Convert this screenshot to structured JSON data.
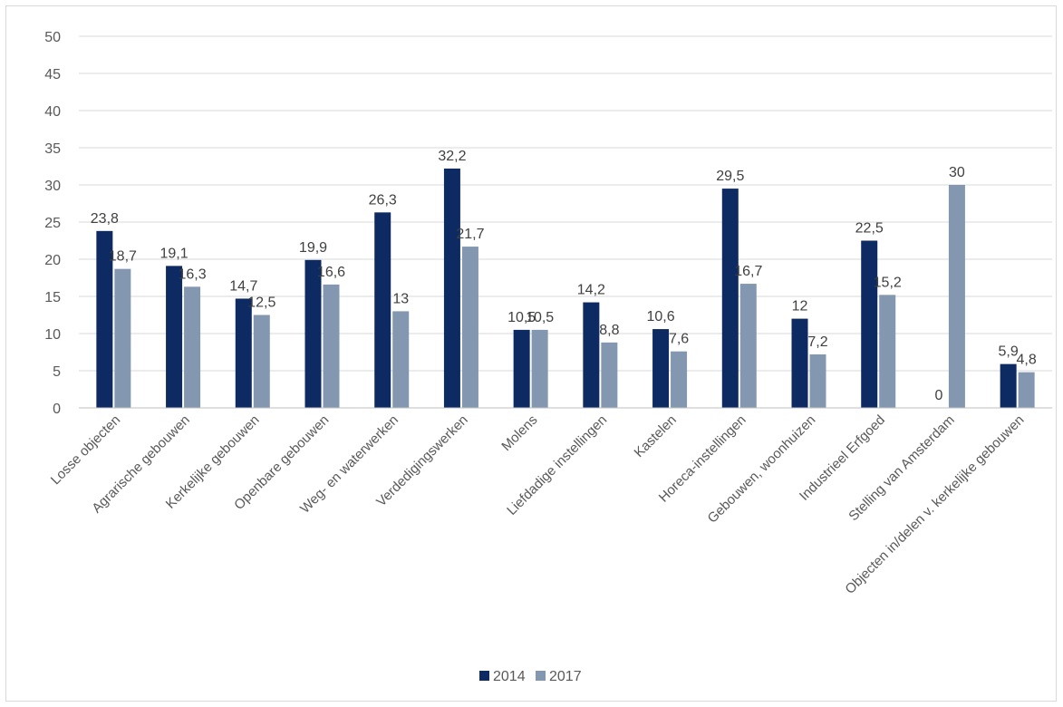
{
  "chart_data": {
    "type": "bar",
    "title": "",
    "xlabel": "",
    "ylabel": "",
    "ylim": [
      0,
      50
    ],
    "yticks": [
      0,
      5,
      10,
      15,
      20,
      25,
      30,
      35,
      40,
      45,
      50
    ],
    "grid": true,
    "legend_position": "bottom",
    "categories": [
      "Losse objecten",
      "Agrarische gebouwen",
      "Kerkelijke gebouwen",
      "Openbare gebouwen",
      "Weg- en waterwerken",
      "Verdedigingswerken",
      "Molens",
      "Liefdadige instellingen",
      "Kastelen",
      "Horeca-instellingen",
      "Gebouwen, woonhuizen",
      "Industrieel Erfgoed",
      "Stelling van Amsterdam",
      "Objecten in/delen v. kerkelijke gebouwen"
    ],
    "series": [
      {
        "name": "2014",
        "color": "#0d2a63",
        "values": [
          23.8,
          19.1,
          14.7,
          19.9,
          26.3,
          32.2,
          10.5,
          14.2,
          10.6,
          29.5,
          12,
          22.5,
          0,
          5.9
        ],
        "labels": [
          "23,8",
          "19,1",
          "14,7",
          "19,9",
          "26,3",
          "32,2",
          "10,5",
          "14,2",
          "10,6",
          "29,5",
          "12",
          "22,5",
          "0",
          "5,9"
        ]
      },
      {
        "name": "2017",
        "color": "#8497b0",
        "values": [
          18.7,
          16.3,
          12.5,
          16.6,
          13,
          21.7,
          10.5,
          8.8,
          7.6,
          16.7,
          7.2,
          15.2,
          30,
          4.8
        ],
        "labels": [
          "18,7",
          "16,3",
          "12,5",
          "16,6",
          "13",
          "21,7",
          "10,5",
          "8,8",
          "7,6",
          "16,7",
          "7,2",
          "15,2",
          "30",
          "4,8"
        ]
      }
    ]
  }
}
